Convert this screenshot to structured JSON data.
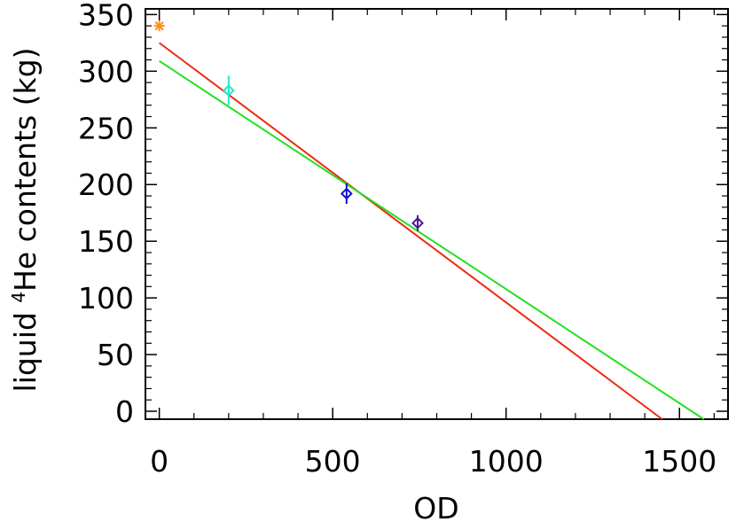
{
  "chart_data": {
    "type": "scatter",
    "xlabel": "OD",
    "ylabel_parts": [
      "liquid ",
      "4",
      "He contents (kg)"
    ],
    "xlim": [
      -40,
      1640
    ],
    "ylim": [
      -7,
      355
    ],
    "x_ticks": [
      0,
      500,
      1000,
      1500
    ],
    "x_tick_labels": [
      "0",
      "500",
      "1000",
      "1500"
    ],
    "y_ticks": [
      0,
      50,
      100,
      150,
      200,
      250,
      300,
      350
    ],
    "y_tick_labels": [
      "0",
      "50",
      "100",
      "150",
      "200",
      "250",
      "300",
      "350"
    ],
    "grid": false,
    "points": [
      {
        "x": 0,
        "y": 340,
        "err": 0,
        "color": "#ff8c1a",
        "marker": "asterisk"
      },
      {
        "x": 200,
        "y": 283,
        "err": 13,
        "color": "#26e6c8",
        "marker": "diamond"
      },
      {
        "x": 540,
        "y": 192,
        "err": 9,
        "color": "#1010d0",
        "marker": "diamond"
      },
      {
        "x": 745,
        "y": 166,
        "err": 7,
        "color": "#4a1a9a",
        "marker": "diamond"
      }
    ],
    "lines": [
      {
        "x": [
          0,
          1450
        ],
        "y": [
          325,
          -7
        ],
        "color": "#ee2a10"
      },
      {
        "x": [
          0,
          1570
        ],
        "y": [
          309,
          -7
        ],
        "color": "#22e022"
      }
    ]
  }
}
